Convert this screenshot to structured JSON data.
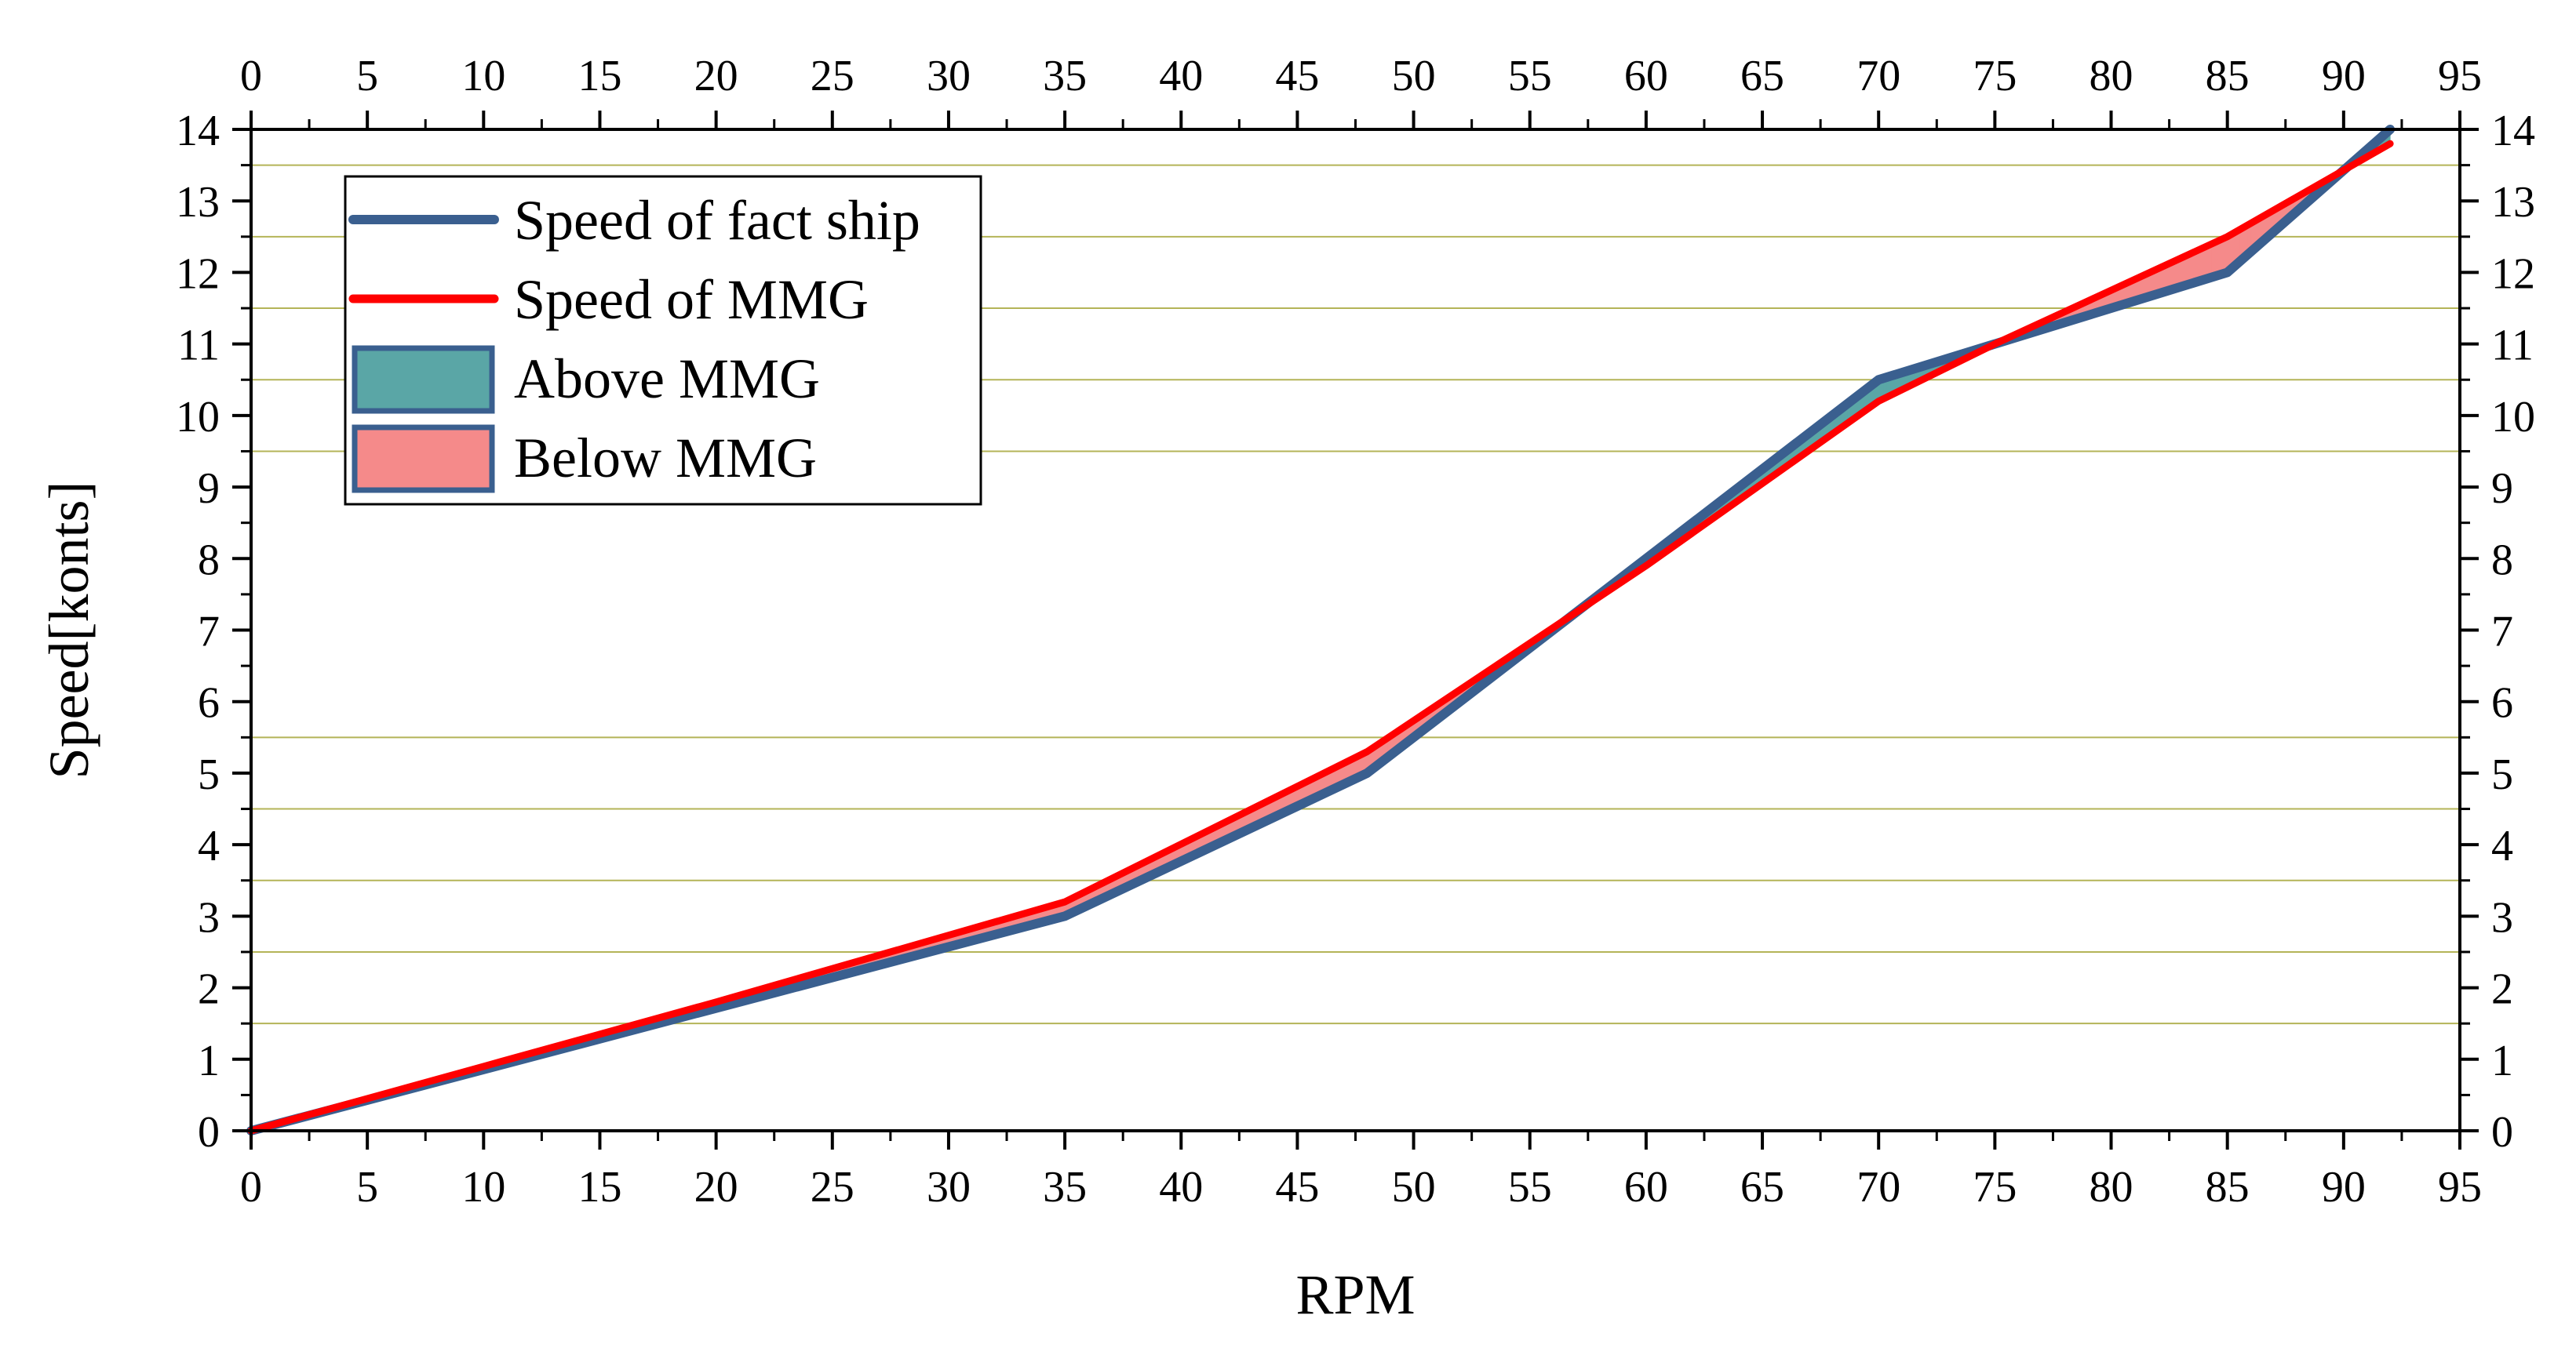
{
  "chart_data": {
    "type": "area",
    "title": "",
    "xlabel": "RPM",
    "ylabel": "Speed[konts]",
    "xlim": [
      0,
      95
    ],
    "ylim": [
      0,
      14
    ],
    "x_ticks": [
      0,
      5,
      10,
      15,
      20,
      25,
      30,
      35,
      40,
      45,
      50,
      55,
      60,
      65,
      70,
      75,
      80,
      85,
      90,
      95
    ],
    "y_ticks": [
      0,
      1,
      2,
      3,
      4,
      5,
      6,
      7,
      8,
      9,
      10,
      11,
      12,
      13,
      14
    ],
    "x_ticks_mirrored_top": true,
    "y_ticks_mirrored_right": true,
    "gridlines_y": [
      1.5,
      2.5,
      3.5,
      4.5,
      5.5,
      9.5,
      10.5,
      11.5,
      12.5,
      13.5
    ],
    "grid_color": "#a8a83c",
    "legend_position": "top-left",
    "series": [
      {
        "name": "Speed of fact ship",
        "color": "#3a5f8f",
        "x": [
          0,
          35,
          48,
          60,
          70,
          85,
          92
        ],
        "y": [
          0,
          3.0,
          5.0,
          8.0,
          10.5,
          12.0,
          14.0
        ]
      },
      {
        "name": "Speed of MMG",
        "color": "#ff0000",
        "x": [
          0,
          10,
          20,
          35,
          48,
          60,
          70,
          75,
          85,
          92
        ],
        "y": [
          0,
          0.9,
          1.8,
          3.2,
          5.3,
          7.9,
          10.2,
          11.0,
          12.5,
          13.8
        ]
      }
    ],
    "fill_regions": [
      {
        "name": "Above MMG",
        "color": "#5aa6a6"
      },
      {
        "name": "Below MMG",
        "color": "#f58a8a"
      }
    ]
  }
}
